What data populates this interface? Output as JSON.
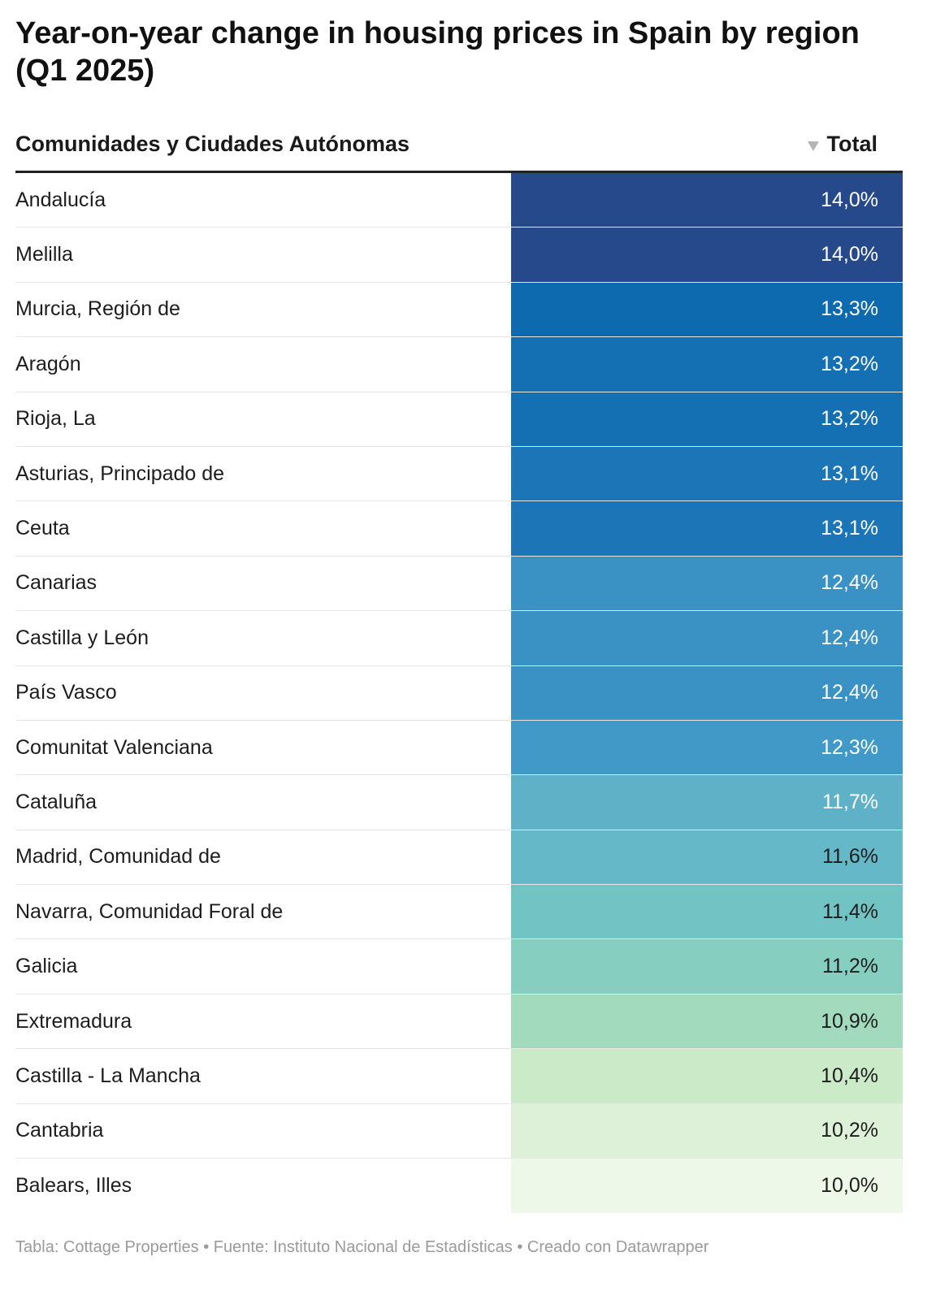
{
  "title": "Year-on-year change in housing prices in Spain by region (Q1 2025)",
  "header": {
    "region_label": "Comunidades y Ciudades Autónomas",
    "total_label": "Total",
    "sort_icon": "sort-descending-icon"
  },
  "chart_data": {
    "type": "table",
    "title": "Year-on-year change in housing prices in Spain by region (Q1 2025)",
    "columns": [
      "Comunidades y Ciudades Autónomas",
      "Total"
    ],
    "rows": [
      {
        "region": "Andalucía",
        "value": 14.0,
        "label": "14,0%",
        "bg": "#26498b",
        "fg": "#ffffff"
      },
      {
        "region": "Melilla",
        "value": 14.0,
        "label": "14,0%",
        "bg": "#26498b",
        "fg": "#ffffff"
      },
      {
        "region": "Murcia, Región de",
        "value": 13.3,
        "label": "13,3%",
        "bg": "#0d6aaf",
        "fg": "#ffffff"
      },
      {
        "region": "Aragón",
        "value": 13.2,
        "label": "13,2%",
        "bg": "#1470b3",
        "fg": "#ffffff"
      },
      {
        "region": "Rioja, La",
        "value": 13.2,
        "label": "13,2%",
        "bg": "#1470b3",
        "fg": "#ffffff"
      },
      {
        "region": "Asturias, Principado de",
        "value": 13.1,
        "label": "13,1%",
        "bg": "#1b75b6",
        "fg": "#ffffff"
      },
      {
        "region": "Ceuta",
        "value": 13.1,
        "label": "13,1%",
        "bg": "#1b75b6",
        "fg": "#ffffff"
      },
      {
        "region": "Canarias",
        "value": 12.4,
        "label": "12,4%",
        "bg": "#3a92c4",
        "fg": "#ffffff"
      },
      {
        "region": "Castilla y León",
        "value": 12.4,
        "label": "12,4%",
        "bg": "#3a92c4",
        "fg": "#ffffff"
      },
      {
        "region": "País Vasco",
        "value": 12.4,
        "label": "12,4%",
        "bg": "#3a92c4",
        "fg": "#ffffff"
      },
      {
        "region": "Comunitat Valenciana",
        "value": 12.3,
        "label": "12,3%",
        "bg": "#4199c7",
        "fg": "#ffffff"
      },
      {
        "region": "Cataluña",
        "value": 11.7,
        "label": "11,7%",
        "bg": "#5fb1c7",
        "fg": "#ffffff"
      },
      {
        "region": "Madrid, Comunidad de",
        "value": 11.6,
        "label": "11,6%",
        "bg": "#65b8c7",
        "fg": "#1d1d1d"
      },
      {
        "region": "Navarra, Comunidad Foral de",
        "value": 11.4,
        "label": "11,4%",
        "bg": "#72c4c4",
        "fg": "#1d1d1d"
      },
      {
        "region": "Galicia",
        "value": 11.2,
        "label": "11,2%",
        "bg": "#86cfc0",
        "fg": "#1d1d1d"
      },
      {
        "region": "Extremadura",
        "value": 10.9,
        "label": "10,9%",
        "bg": "#a2dabd",
        "fg": "#1d1d1d"
      },
      {
        "region": "Castilla - La Mancha",
        "value": 10.4,
        "label": "10,4%",
        "bg": "#cbeac8",
        "fg": "#1d1d1d"
      },
      {
        "region": "Cantabria",
        "value": 10.2,
        "label": "10,2%",
        "bg": "#ddf1d8",
        "fg": "#1d1d1d"
      },
      {
        "region": "Balears, Illes",
        "value": 10.0,
        "label": "10,0%",
        "bg": "#eef8e8",
        "fg": "#1d1d1d"
      }
    ]
  },
  "footer": "Tabla: Cottage Properties • Fuente: Instituto Nacional de Estadísticas • Creado con Datawrapper"
}
